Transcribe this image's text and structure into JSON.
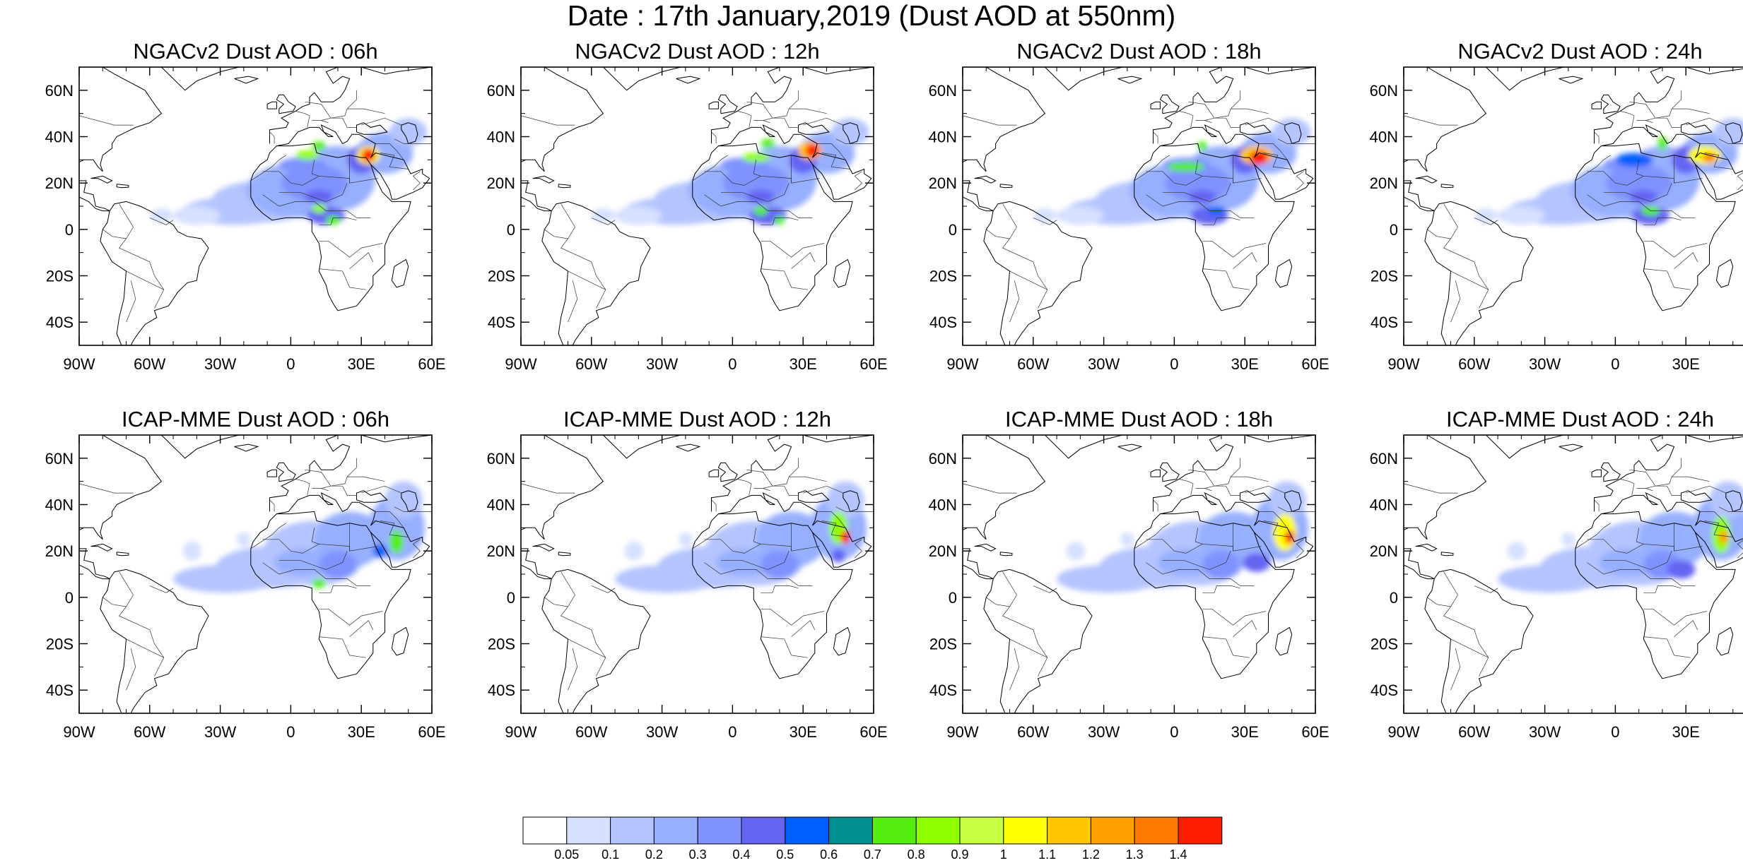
{
  "title": "Date : 17th January,2019 (Dust AOD at 550nm)",
  "axes": {
    "lat_labels": [
      "60N",
      "40N",
      "20N",
      "0",
      "20S",
      "40S"
    ],
    "lat_values": [
      60,
      40,
      20,
      0,
      -20,
      -40
    ],
    "lon_labels": [
      "90W",
      "60W",
      "30W",
      "0",
      "30E",
      "60E"
    ],
    "lon_values": [
      -90,
      -60,
      -30,
      0,
      30,
      60
    ],
    "lat_range": [
      -50,
      70
    ],
    "lon_range": [
      -90,
      60
    ]
  },
  "panels": [
    {
      "title": "NGACv2 Dust AOD : 06h"
    },
    {
      "title": "NGACv2 Dust AOD : 12h"
    },
    {
      "title": "NGACv2 Dust AOD : 18h"
    },
    {
      "title": "NGACv2 Dust AOD : 24h"
    },
    {
      "title": "ICAP-MME Dust AOD : 06h"
    },
    {
      "title": "ICAP-MME Dust AOD : 12h"
    },
    {
      "title": "ICAP-MME Dust AOD : 18h"
    },
    {
      "title": "ICAP-MME Dust AOD : 24h"
    }
  ],
  "colorbar": {
    "labels": [
      "0.05",
      "0.1",
      "0.2",
      "0.3",
      "0.4",
      "0.5",
      "0.6",
      "0.7",
      "0.8",
      "0.9",
      "1",
      "1.1",
      "1.2",
      "1.3",
      "1.4"
    ],
    "colors": [
      "#ffffff",
      "#d6e0ff",
      "#b4c4ff",
      "#97afff",
      "#7f92ff",
      "#6565f2",
      "#0060ff",
      "#008f8f",
      "#55ee11",
      "#8fff00",
      "#c8ff40",
      "#ffff00",
      "#ffc800",
      "#ff9f00",
      "#ff7a00",
      "#ff1f00"
    ]
  }
}
